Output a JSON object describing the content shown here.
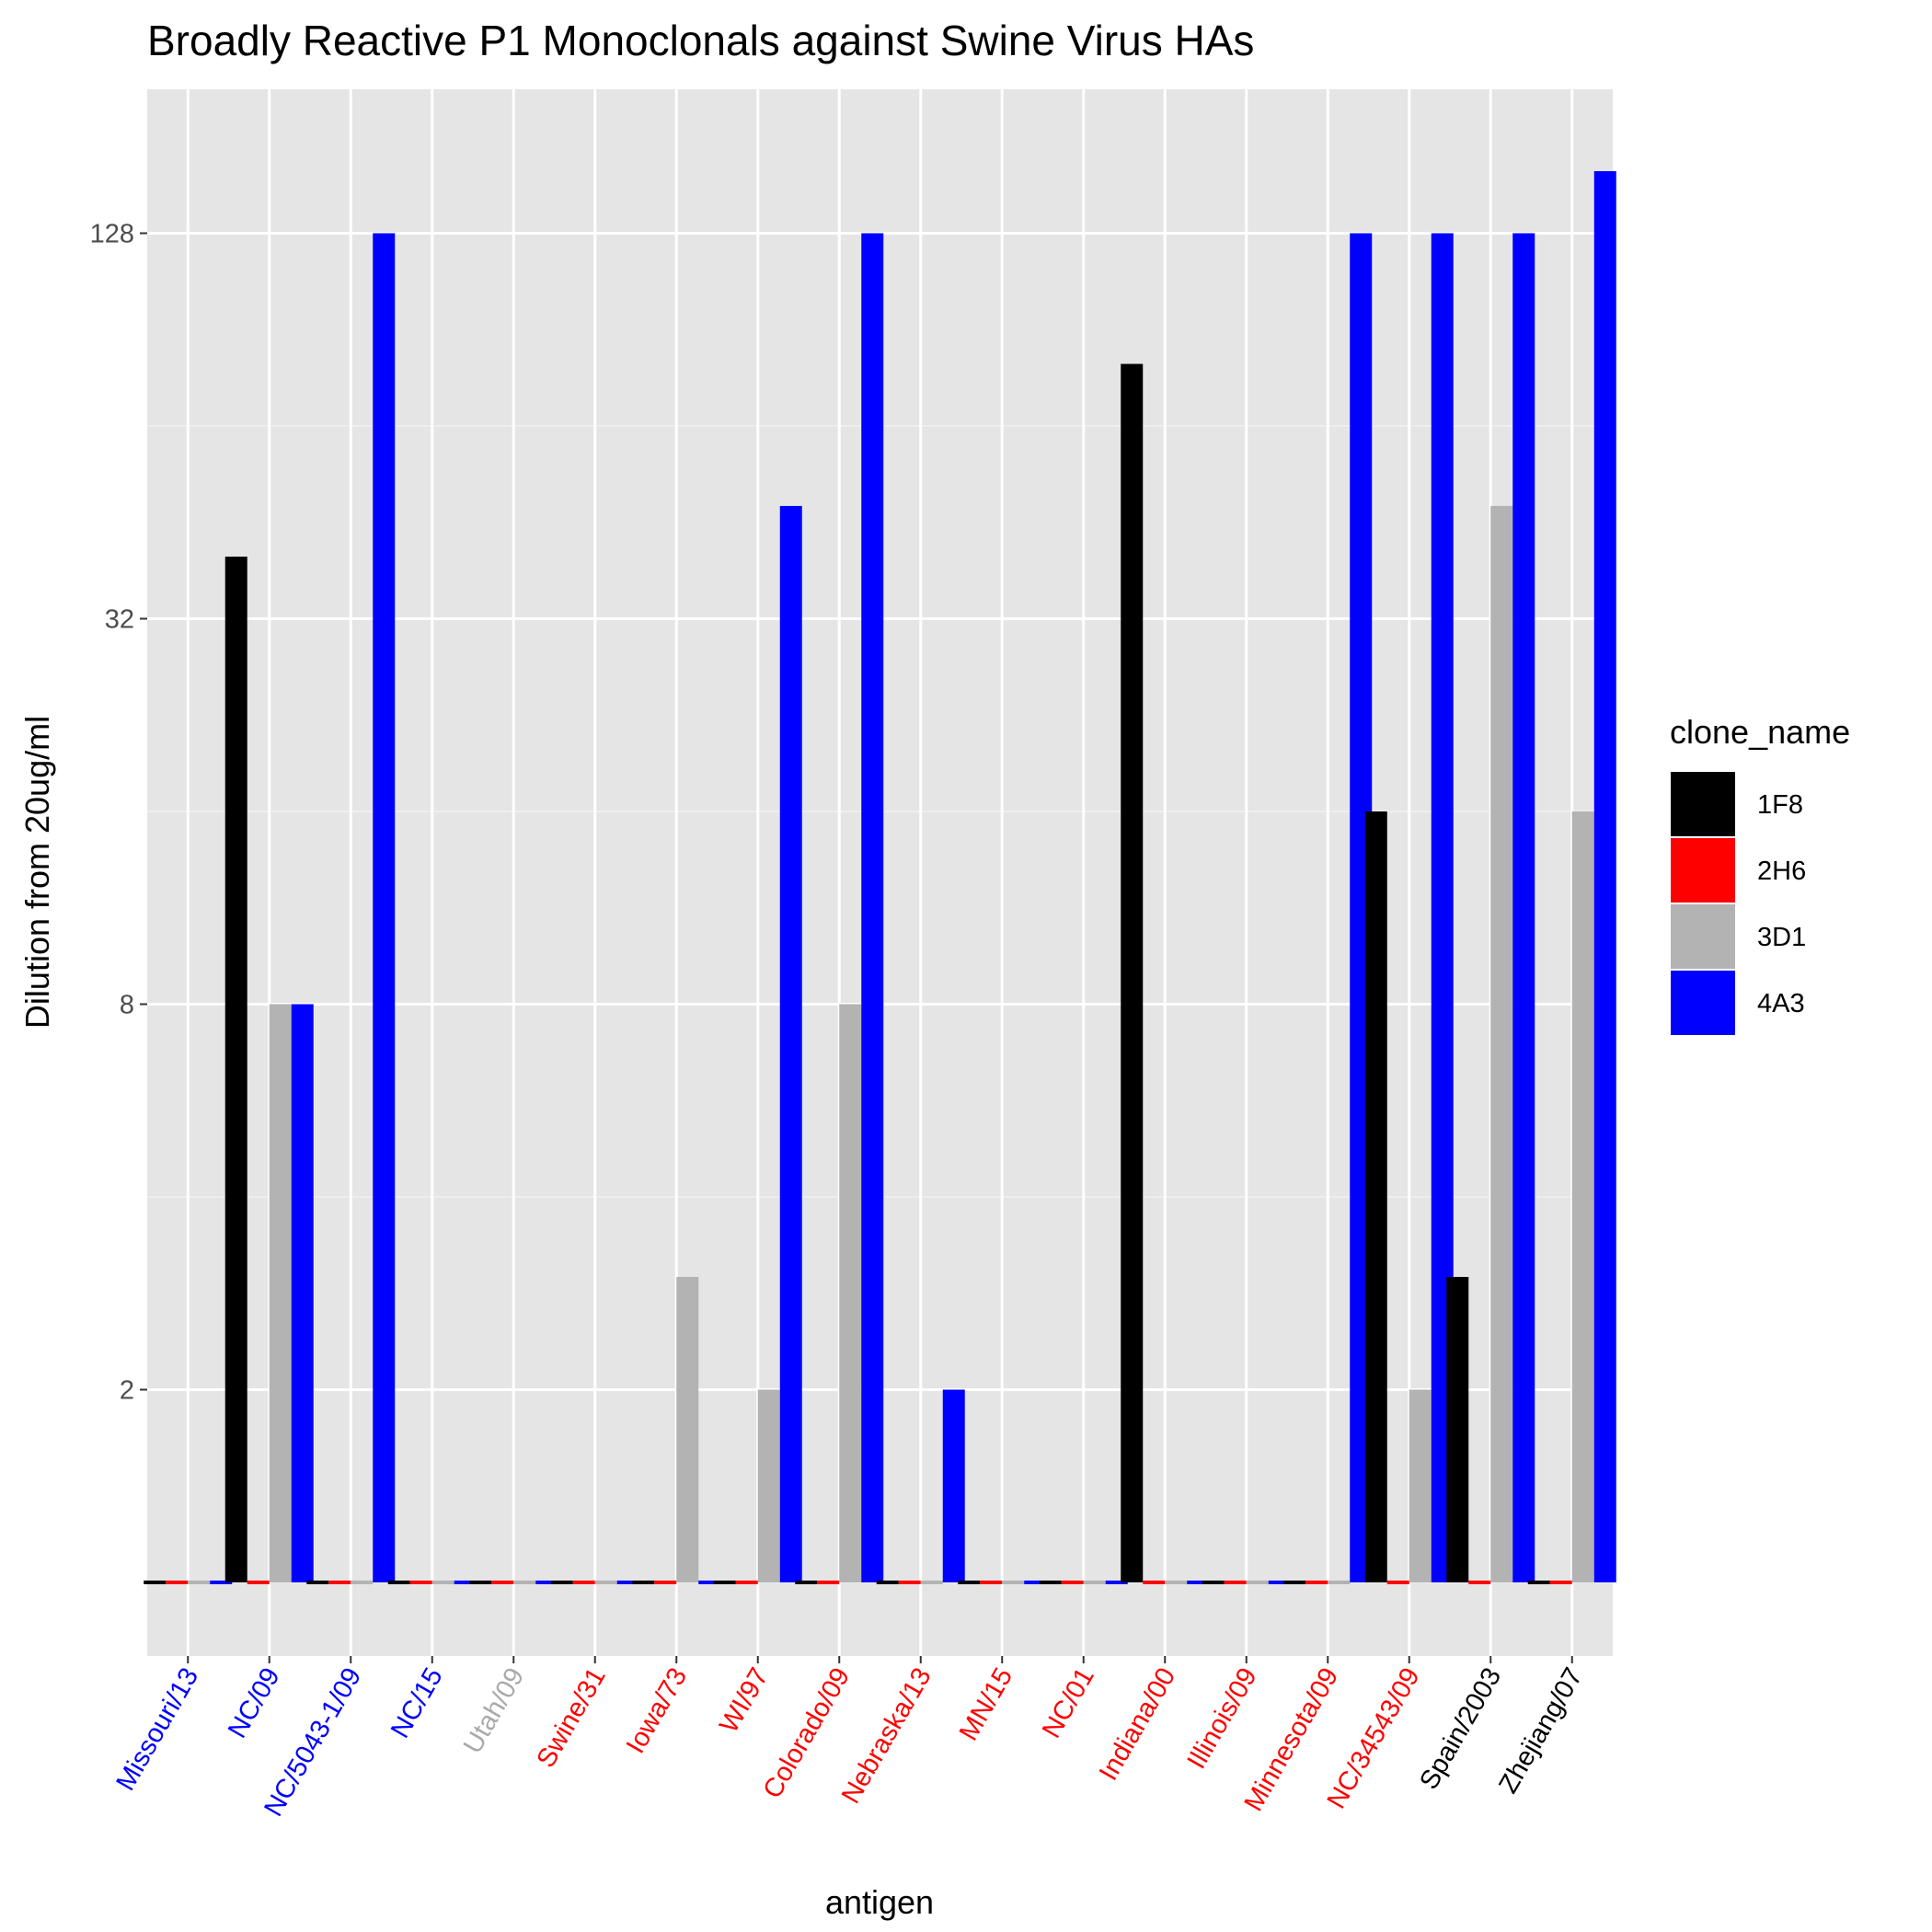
{
  "chart_data": {
    "type": "bar",
    "title": "Broadly Reactive P1 Monoclonals against Swine Virus HAs",
    "xlabel": "antigen",
    "ylabel": "Dilution from 20ug/ml",
    "y_scale": "log2",
    "yticks": [
      "2",
      "8",
      "32",
      "128"
    ],
    "ylim": [
      0.5,
      256
    ],
    "grid": true,
    "legend": {
      "title": "clone_name",
      "position": "right"
    },
    "categories": [
      "Missouri/13",
      "NC/09",
      "NC/5043-1/09",
      "NC/15",
      "Utah/09",
      "Swine/31",
      "Iowa/73",
      "WI/97",
      "Colorado/09",
      "Nebraska/13",
      "MN/15",
      "NC/01",
      "Indiana/00",
      "Illinois/09",
      "Minnesota/09",
      "NC/34543/09",
      "Spain/2003",
      "Zhejiang/07"
    ],
    "category_colors": [
      "#0000ff",
      "#0000ff",
      "#0000ff",
      "#0000ff",
      "#aaaaaa",
      "#ff0000",
      "#ff0000",
      "#ff0000",
      "#ff0000",
      "#ff0000",
      "#ff0000",
      "#ff0000",
      "#ff0000",
      "#ff0000",
      "#ff0000",
      "#ff0000",
      "#000000",
      "#000000"
    ],
    "series": [
      {
        "name": "1F8",
        "color": "#000000",
        "values": [
          1,
          40,
          1,
          1,
          1,
          1,
          1,
          1,
          1,
          1,
          1,
          1,
          80,
          1,
          1,
          16,
          3,
          1
        ]
      },
      {
        "name": "2H6",
        "color": "#ff0000",
        "values": [
          1,
          1,
          1,
          1,
          1,
          1,
          1,
          1,
          1,
          1,
          1,
          1,
          1,
          1,
          1,
          1,
          1,
          1
        ]
      },
      {
        "name": "3D1",
        "color": "#b3b3b3",
        "values": [
          1,
          8,
          1,
          1,
          1,
          1,
          3,
          2,
          8,
          1,
          1,
          1,
          1,
          1,
          1,
          2,
          48,
          16
        ]
      },
      {
        "name": "4A3",
        "color": "#0000ff",
        "values": [
          1,
          8,
          128,
          1,
          1,
          1,
          1,
          48,
          128,
          2,
          1,
          1,
          1,
          1,
          128,
          128,
          128,
          160
        ]
      }
    ]
  }
}
